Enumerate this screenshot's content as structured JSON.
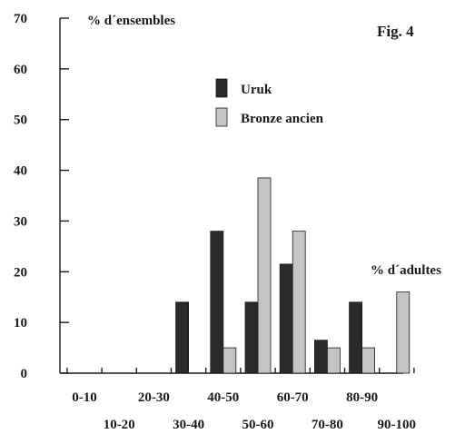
{
  "chart_data": {
    "type": "bar",
    "figure_label": "Fig. 4",
    "ylabel": "% d´ensembles",
    "xlabel": "% d´adultes",
    "ylim": [
      0,
      70
    ],
    "yticks": [
      "0",
      "10",
      "20",
      "30",
      "40",
      "50",
      "60",
      "70"
    ],
    "categories": [
      "0-10",
      "10-20",
      "20-30",
      "30-40",
      "40-50",
      "50-60",
      "60-70",
      "70-80",
      "80-90",
      "90-100"
    ],
    "series": [
      {
        "name": "Uruk",
        "color": "#2a2a2a",
        "values": [
          0,
          0,
          0,
          14,
          28,
          14,
          21.5,
          6.5,
          14,
          0
        ]
      },
      {
        "name": "Bronze ancien",
        "color": "#c4c4c4",
        "values": [
          0,
          0,
          0,
          0,
          5,
          38.5,
          28,
          5,
          5,
          16
        ]
      }
    ],
    "legend": "top-center",
    "grid": false
  }
}
